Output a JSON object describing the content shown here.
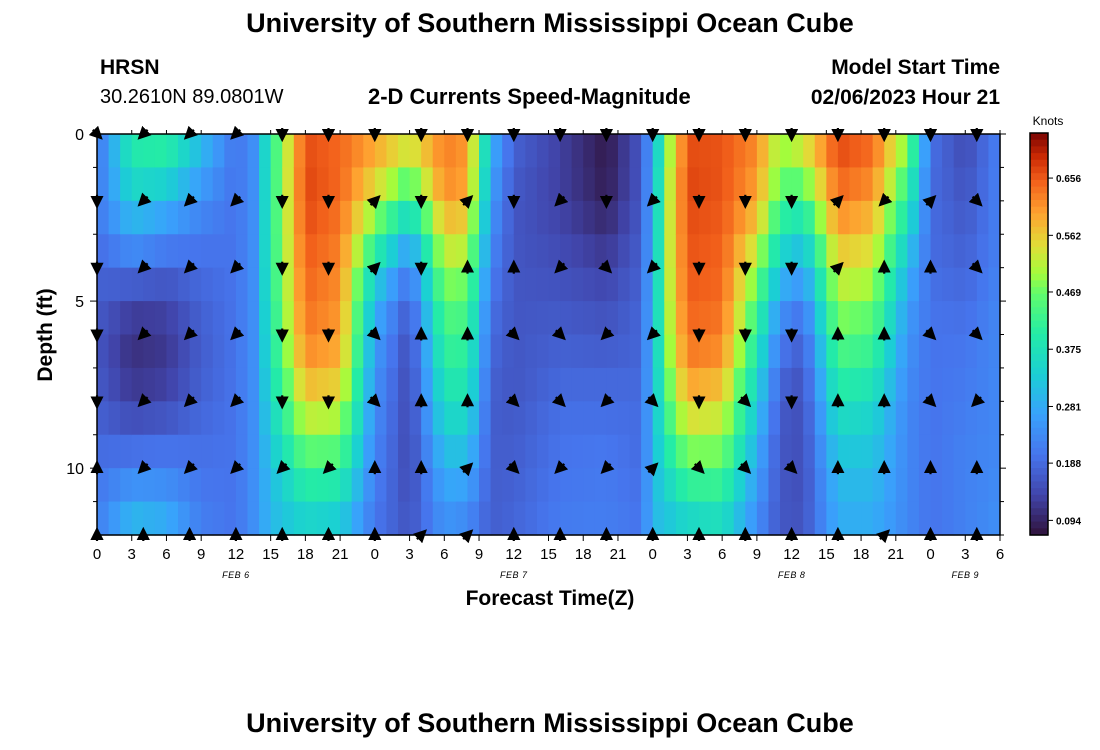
{
  "header": {
    "title": "University of Southern Mississippi Ocean Cube",
    "station": "HRSN",
    "coordinates": "30.2610N  89.0801W",
    "subtitle": "2-D Currents Speed-Magnitude",
    "model_start_label": "Model Start Time",
    "model_start_value": "02/06/2023 Hour 21"
  },
  "footer": {
    "title": "University of Southern Mississippi Ocean Cube"
  },
  "chart_data": {
    "type": "heatmap",
    "title": "2-D Currents Speed-Magnitude",
    "xlabel": "Forecast Time(Z)",
    "ylabel": "Depth (ft)",
    "colorbar_label": "Knots",
    "colorbar_ticks": [
      "0.094",
      "0.188",
      "0.281",
      "0.375",
      "0.469",
      "0.562",
      "0.656"
    ],
    "colorbar_range": [
      0.07,
      0.73
    ],
    "x_hours_range": [
      0,
      78
    ],
    "x_tick_labels": [
      "0",
      "3",
      "6",
      "9",
      "12",
      "15",
      "18",
      "21",
      "0",
      "3",
      "6",
      "9",
      "12",
      "15",
      "18",
      "21",
      "0",
      "3",
      "6",
      "9",
      "12",
      "15",
      "18",
      "21",
      "0",
      "3",
      "6"
    ],
    "date_labels": [
      {
        "text": "FEB 6",
        "hour": 12
      },
      {
        "text": "FEB 7",
        "hour": 36
      },
      {
        "text": "FEB 8",
        "hour": 60
      },
      {
        "text": "FEB 9",
        "hour": 75
      }
    ],
    "y_range": [
      0,
      12
    ],
    "y_tick_labels": [
      "0",
      "5",
      "10"
    ],
    "y_ticks": [
      0,
      5,
      10
    ],
    "depth_levels": [
      0,
      1,
      2,
      3,
      4,
      5,
      6,
      7,
      8,
      9,
      10,
      11,
      12
    ],
    "speed_profiles": [
      {
        "hour": 0,
        "speeds": [
          0.2,
          0.2,
          0.21,
          0.2,
          0.18,
          0.17,
          0.16,
          0.16,
          0.17,
          0.18,
          0.2,
          0.21,
          0.22
        ]
      },
      {
        "hour": 3,
        "speeds": [
          0.4,
          0.38,
          0.33,
          0.27,
          0.2,
          0.14,
          0.11,
          0.11,
          0.13,
          0.17,
          0.22,
          0.27,
          0.32
        ]
      },
      {
        "hour": 6,
        "speeds": [
          0.42,
          0.38,
          0.3,
          0.24,
          0.18,
          0.14,
          0.12,
          0.12,
          0.14,
          0.18,
          0.22,
          0.26,
          0.3
        ]
      },
      {
        "hour": 9,
        "speeds": [
          0.32,
          0.28,
          0.24,
          0.21,
          0.19,
          0.18,
          0.17,
          0.17,
          0.18,
          0.19,
          0.2,
          0.21,
          0.22
        ]
      },
      {
        "hour": 12,
        "speeds": [
          0.2,
          0.2,
          0.2,
          0.2,
          0.2,
          0.2,
          0.2,
          0.2,
          0.2,
          0.2,
          0.2,
          0.2,
          0.2
        ]
      },
      {
        "hour": 13.5,
        "speeds": [
          0.24,
          0.24,
          0.24,
          0.24,
          0.24,
          0.24,
          0.24,
          0.24,
          0.24,
          0.24,
          0.24,
          0.24,
          0.24
        ]
      },
      {
        "hour": 15,
        "speeds": [
          0.4,
          0.4,
          0.4,
          0.4,
          0.4,
          0.39,
          0.38,
          0.37,
          0.35,
          0.33,
          0.31,
          0.3,
          0.3
        ]
      },
      {
        "hour": 18,
        "speeds": [
          0.66,
          0.67,
          0.67,
          0.66,
          0.65,
          0.64,
          0.63,
          0.6,
          0.55,
          0.49,
          0.43,
          0.37,
          0.33
        ]
      },
      {
        "hour": 21,
        "speeds": [
          0.64,
          0.65,
          0.64,
          0.63,
          0.62,
          0.61,
          0.6,
          0.58,
          0.53,
          0.48,
          0.42,
          0.36,
          0.31
        ]
      },
      {
        "hour": 24,
        "speeds": [
          0.6,
          0.58,
          0.52,
          0.45,
          0.36,
          0.3,
          0.27,
          0.25,
          0.24,
          0.23,
          0.22,
          0.21,
          0.2
        ]
      },
      {
        "hour": 27,
        "speeds": [
          0.55,
          0.5,
          0.4,
          0.3,
          0.22,
          0.17,
          0.15,
          0.14,
          0.14,
          0.14,
          0.14,
          0.15,
          0.16
        ]
      },
      {
        "hour": 30,
        "speeds": [
          0.62,
          0.63,
          0.6,
          0.55,
          0.5,
          0.46,
          0.43,
          0.4,
          0.37,
          0.33,
          0.29,
          0.26,
          0.24
        ]
      },
      {
        "hour": 32,
        "speeds": [
          0.6,
          0.61,
          0.58,
          0.54,
          0.49,
          0.45,
          0.42,
          0.4,
          0.37,
          0.33,
          0.29,
          0.25,
          0.22
        ]
      },
      {
        "hour": 34,
        "speeds": [
          0.3,
          0.28,
          0.26,
          0.24,
          0.22,
          0.2,
          0.19,
          0.18,
          0.17,
          0.17,
          0.17,
          0.17,
          0.17
        ]
      },
      {
        "hour": 36,
        "speeds": [
          0.18,
          0.17,
          0.16,
          0.16,
          0.16,
          0.16,
          0.16,
          0.16,
          0.16,
          0.17,
          0.17,
          0.18,
          0.18
        ]
      },
      {
        "hour": 40,
        "speeds": [
          0.13,
          0.13,
          0.13,
          0.14,
          0.15,
          0.16,
          0.17,
          0.18,
          0.19,
          0.2,
          0.2,
          0.21,
          0.21
        ]
      },
      {
        "hour": 44,
        "speeds": [
          0.08,
          0.08,
          0.09,
          0.11,
          0.13,
          0.15,
          0.16,
          0.18,
          0.19,
          0.2,
          0.21,
          0.21,
          0.22
        ]
      },
      {
        "hour": 47,
        "speeds": [
          0.16,
          0.16,
          0.16,
          0.17,
          0.17,
          0.18,
          0.18,
          0.18,
          0.19,
          0.19,
          0.19,
          0.2,
          0.2
        ]
      },
      {
        "hour": 48,
        "speeds": [
          0.28,
          0.28,
          0.29,
          0.29,
          0.29,
          0.3,
          0.3,
          0.3,
          0.3,
          0.3,
          0.3,
          0.3,
          0.3
        ]
      },
      {
        "hour": 49.5,
        "speeds": [
          0.5,
          0.52,
          0.53,
          0.53,
          0.53,
          0.52,
          0.51,
          0.49,
          0.46,
          0.42,
          0.38,
          0.34,
          0.31
        ]
      },
      {
        "hour": 51,
        "speeds": [
          0.66,
          0.67,
          0.67,
          0.66,
          0.66,
          0.65,
          0.64,
          0.62,
          0.57,
          0.51,
          0.45,
          0.38,
          0.33
        ]
      },
      {
        "hour": 54,
        "speeds": [
          0.66,
          0.66,
          0.66,
          0.65,
          0.65,
          0.64,
          0.63,
          0.6,
          0.55,
          0.5,
          0.45,
          0.39,
          0.35
        ]
      },
      {
        "hour": 57,
        "speeds": [
          0.62,
          0.61,
          0.59,
          0.55,
          0.49,
          0.44,
          0.4,
          0.36,
          0.33,
          0.3,
          0.27,
          0.25,
          0.23
        ]
      },
      {
        "hour": 59,
        "speeds": [
          0.5,
          0.48,
          0.44,
          0.38,
          0.32,
          0.26,
          0.22,
          0.19,
          0.17,
          0.16,
          0.16,
          0.16,
          0.16
        ]
      },
      {
        "hour": 61,
        "speeds": [
          0.55,
          0.5,
          0.42,
          0.34,
          0.28,
          0.22,
          0.18,
          0.16,
          0.15,
          0.15,
          0.15,
          0.15,
          0.16
        ]
      },
      {
        "hour": 64,
        "speeds": [
          0.67,
          0.66,
          0.63,
          0.59,
          0.54,
          0.5,
          0.46,
          0.42,
          0.38,
          0.34,
          0.31,
          0.29,
          0.28
        ]
      },
      {
        "hour": 67,
        "speeds": [
          0.65,
          0.63,
          0.6,
          0.56,
          0.52,
          0.48,
          0.44,
          0.4,
          0.36,
          0.33,
          0.31,
          0.29,
          0.28
        ]
      },
      {
        "hour": 70,
        "speeds": [
          0.5,
          0.45,
          0.4,
          0.35,
          0.3,
          0.27,
          0.25,
          0.24,
          0.23,
          0.23,
          0.23,
          0.23,
          0.23
        ]
      },
      {
        "hour": 72,
        "speeds": [
          0.2,
          0.19,
          0.19,
          0.19,
          0.19,
          0.2,
          0.2,
          0.2,
          0.2,
          0.2,
          0.2,
          0.2,
          0.2
        ]
      },
      {
        "hour": 75,
        "speeds": [
          0.14,
          0.15,
          0.16,
          0.17,
          0.18,
          0.19,
          0.2,
          0.21,
          0.21,
          0.22,
          0.22,
          0.22,
          0.22
        ]
      },
      {
        "hour": 78,
        "speeds": [
          0.22,
          0.22,
          0.22,
          0.22,
          0.22,
          0.23,
          0.23,
          0.23,
          0.23,
          0.23,
          0.23,
          0.24,
          0.24
        ]
      }
    ],
    "vector_hours": [
      0,
      4,
      8,
      12,
      16,
      20,
      24,
      28,
      32,
      36,
      40,
      44,
      48,
      52,
      56,
      60,
      64,
      68,
      72,
      76
    ],
    "vector_depths": [
      0,
      2,
      4,
      6,
      8,
      10,
      12
    ],
    "vector_directions_deg": [
      [
        135,
        225,
        225,
        225,
        180,
        180,
        180,
        180,
        180,
        180,
        180,
        180,
        180,
        180,
        180,
        180,
        180,
        180,
        180,
        180
      ],
      [
        180,
        225,
        225,
        225,
        180,
        180,
        45,
        180,
        45,
        180,
        225,
        180,
        225,
        180,
        180,
        180,
        45,
        225,
        45,
        135
      ],
      [
        180,
        225,
        225,
        225,
        180,
        180,
        45,
        180,
        0,
        0,
        225,
        135,
        225,
        180,
        180,
        180,
        45,
        0,
        0,
        135
      ],
      [
        180,
        225,
        225,
        225,
        180,
        180,
        135,
        0,
        0,
        135,
        135,
        225,
        225,
        180,
        180,
        180,
        0,
        0,
        135,
        135
      ],
      [
        180,
        225,
        225,
        225,
        180,
        180,
        135,
        0,
        0,
        135,
        135,
        225,
        135,
        180,
        135,
        180,
        0,
        0,
        135,
        225
      ],
      [
        0,
        225,
        225,
        225,
        225,
        225,
        0,
        0,
        45,
        135,
        225,
        225,
        45,
        135,
        135,
        135,
        0,
        0,
        0,
        0
      ],
      [
        0,
        0,
        0,
        0,
        0,
        0,
        0,
        45,
        45,
        0,
        0,
        0,
        0,
        0,
        0,
        0,
        0,
        45,
        0,
        0
      ]
    ]
  }
}
